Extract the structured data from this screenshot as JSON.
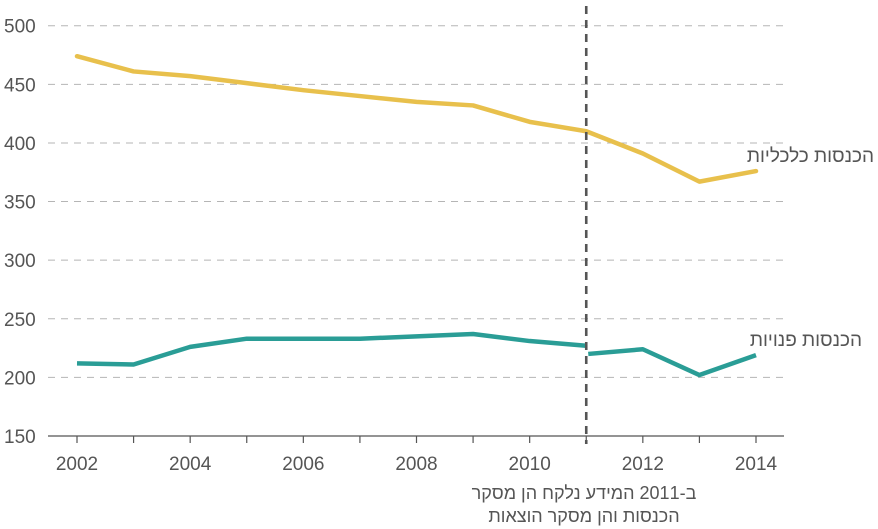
{
  "chart_data": {
    "type": "line",
    "title": "",
    "xlabel": "",
    "ylabel": "",
    "x": [
      2002,
      2003,
      2004,
      2005,
      2006,
      2007,
      2008,
      2009,
      2010,
      2011,
      2012,
      2013,
      2014
    ],
    "xticks": [
      2002,
      2004,
      2006,
      2008,
      2010,
      2012,
      2014
    ],
    "yticks": [
      150,
      200,
      250,
      300,
      350,
      400,
      450,
      500
    ],
    "ylim": [
      150,
      510
    ],
    "grid": "horizontal dashed",
    "break_year": 2011,
    "series": [
      {
        "name": "הכנסות כלכליות",
        "color": "#e8c04c",
        "values": [
          474,
          461,
          457,
          451,
          445,
          440,
          435,
          432,
          418,
          410,
          391,
          367,
          376
        ]
      },
      {
        "name": "הכנסות פנויות",
        "color": "#2a9d96",
        "values": [
          212,
          211,
          226,
          233,
          233,
          233,
          235,
          237,
          231,
          227,
          null,
          null,
          null
        ],
        "continuation": [
          220,
          224,
          202,
          219
        ]
      }
    ],
    "annotation": {
      "line1": "ב-2011 המידע נלקח הן מסקר",
      "line2": "הכנסות והן מסקר הוצאות"
    }
  }
}
